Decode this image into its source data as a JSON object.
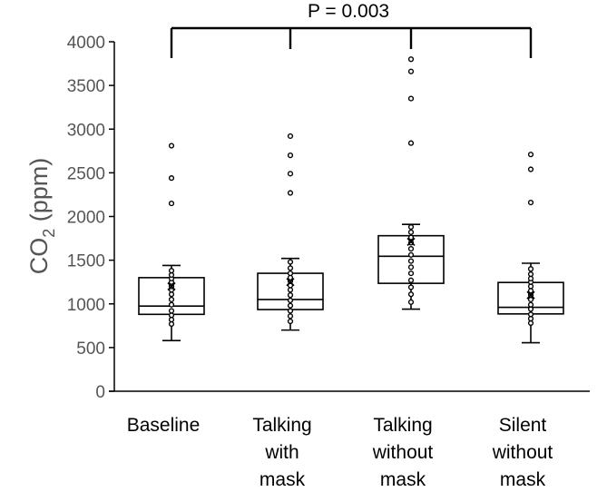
{
  "chart_data": {
    "type": "box",
    "ylabel": {
      "main": "CO",
      "subscript": "2",
      "unit": " (ppm)"
    },
    "ylim": [
      0,
      4000
    ],
    "yticks": [
      0,
      500,
      1000,
      1500,
      2000,
      2500,
      3000,
      3500,
      4000
    ],
    "annotation": "P = 0.003",
    "grid": false,
    "categories": [
      {
        "lines": [
          "Baseline"
        ]
      },
      {
        "lines": [
          "Talking",
          "with",
          "mask"
        ]
      },
      {
        "lines": [
          "Talking",
          "without",
          "mask"
        ]
      },
      {
        "lines": [
          "Silent",
          "without",
          "mask"
        ]
      }
    ],
    "boxes": [
      {
        "min": 580,
        "q1": 880,
        "median": 975,
        "q3": 1300,
        "max": 1440,
        "mean": 1200,
        "points": [
          770,
          820,
          870,
          920,
          990,
          1050,
          1110,
          1160,
          1200,
          1250,
          1290,
          1330,
          1380
        ],
        "outliers": [
          2150,
          2440,
          2810
        ]
      },
      {
        "min": 700,
        "q1": 935,
        "median": 1050,
        "q3": 1350,
        "max": 1520,
        "mean": 1250,
        "points": [
          800,
          860,
          920,
          980,
          1040,
          1100,
          1160,
          1210,
          1260,
          1300,
          1350,
          1410,
          1480
        ],
        "outliers": [
          2270,
          2490,
          2700,
          2920
        ]
      },
      {
        "min": 940,
        "q1": 1235,
        "median": 1545,
        "q3": 1780,
        "max": 1910,
        "mean": 1710,
        "points": [
          1020,
          1110,
          1190,
          1270,
          1350,
          1420,
          1490,
          1560,
          1630,
          1700,
          1760,
          1820,
          1880
        ],
        "outliers": [
          2840,
          3350,
          3660,
          3800
        ]
      },
      {
        "min": 555,
        "q1": 885,
        "median": 960,
        "q3": 1245,
        "max": 1465,
        "mean": 1100,
        "points": [
          780,
          830,
          880,
          940,
          990,
          1050,
          1100,
          1150,
          1200,
          1250,
          1290,
          1340,
          1400
        ],
        "outliers": [
          2160,
          2540,
          2710
        ]
      }
    ]
  }
}
